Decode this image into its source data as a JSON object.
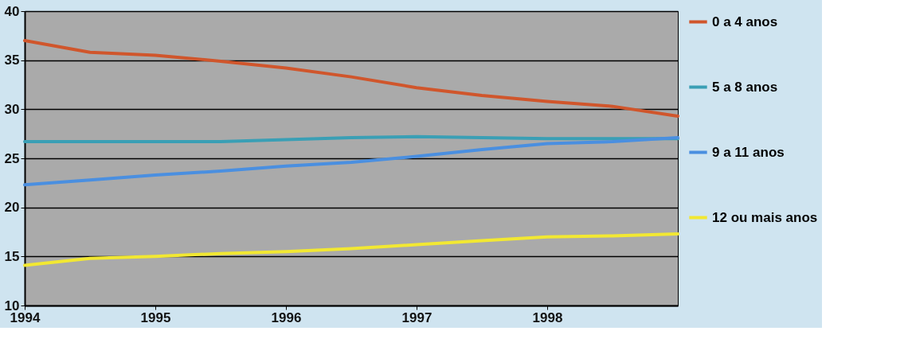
{
  "chart_data": {
    "type": "line",
    "x": [
      1994,
      1994.5,
      1995,
      1995.5,
      1996,
      1996.5,
      1997,
      1997.5,
      1998,
      1998.5,
      1999
    ],
    "series": [
      {
        "name": "0 a 4 anos",
        "color": "#d0562c",
        "values": [
          37,
          35.8,
          35.5,
          34.9,
          34.2,
          33.3,
          32.2,
          31.4,
          30.8,
          30.3,
          29.3
        ]
      },
      {
        "name": "5 a 8 anos",
        "color": "#3a9fb5",
        "values": [
          26.7,
          26.7,
          26.7,
          26.7,
          26.9,
          27.1,
          27.2,
          27.1,
          27,
          27,
          27
        ]
      },
      {
        "name": "9 a 11 anos",
        "color": "#4a8fe0",
        "values": [
          22.3,
          22.8,
          23.3,
          23.7,
          24.2,
          24.6,
          25.2,
          25.9,
          26.5,
          26.7,
          27.1
        ]
      },
      {
        "name": "12 ou mais anos",
        "color": "#f2e832",
        "values": [
          14.1,
          14.8,
          15,
          15.3,
          15.5,
          15.8,
          16.2,
          16.6,
          17,
          17.1,
          17.3
        ]
      }
    ],
    "xlim": [
      1994,
      1999
    ],
    "xticks": [
      1994,
      1995,
      1996,
      1997,
      1998
    ],
    "ylim": [
      10,
      40
    ],
    "yticks": [
      10,
      15,
      20,
      25,
      30,
      35,
      40
    ],
    "grid": "y",
    "legend": "right",
    "marker": "none",
    "line_style": "solid"
  }
}
